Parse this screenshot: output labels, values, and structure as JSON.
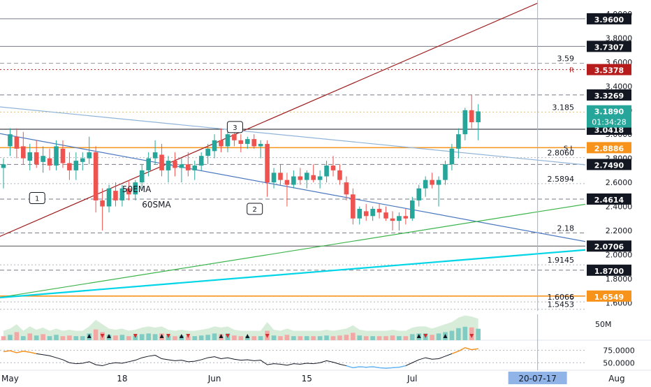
{
  "chart_data": {
    "type": "candlestick",
    "price_axis": {
      "min": 1.545,
      "max": 4.0,
      "ticks": [
        "4.0000",
        "3.8000",
        "3.6000",
        "3.4000",
        "3.2000",
        "3.0000",
        "2.8000",
        "2.6000",
        "2.4000",
        "2.2000",
        "2.0000",
        "1.8000",
        "1.6000"
      ],
      "tick_values": [
        4.0,
        3.8,
        3.6,
        3.4,
        3.2,
        3.0,
        2.8,
        2.6,
        2.4,
        2.2,
        2.0,
        1.8,
        1.6
      ]
    },
    "time_axis": {
      "labels": [
        {
          "text": "May",
          "day": 1
        },
        {
          "text": "18",
          "day": 18
        },
        {
          "text": "Jun",
          "day": 32
        },
        {
          "text": "15",
          "day": 46
        },
        {
          "text": "Jul",
          "day": 62
        },
        {
          "text": "Aug",
          "day": 93
        }
      ],
      "cursor_date": "20-07-17",
      "cursor_day": 81
    },
    "horizontal_levels": [
      {
        "price": 3.96,
        "label": "3.9600",
        "color": "#787b86",
        "style": "solid",
        "tag_bg": "#131722"
      },
      {
        "price": 3.7307,
        "label": "3.7307",
        "color": "#787b86",
        "style": "solid",
        "tag_bg": "#131722"
      },
      {
        "price": 3.59,
        "label": "3.59",
        "color": "#9598a1",
        "style": "dashed",
        "note": "3.59"
      },
      {
        "price": 3.5378,
        "label": "3.5378",
        "color": "#b71c1c",
        "style": "dotted",
        "tag_bg": "#b71c1c",
        "prefix": "R"
      },
      {
        "price": 3.3269,
        "label": "3.3269",
        "color": "#787b86",
        "style": "dashed",
        "tag_bg": "#131722"
      },
      {
        "price": 3.185,
        "label": "3.185",
        "color": "#e0c070",
        "style": "dotted",
        "note": "3.185"
      },
      {
        "price": 3.0418,
        "label": "3.0418",
        "color": "#131722",
        "style": "solid",
        "tag_bg": "#131722"
      },
      {
        "price": 2.8886,
        "label": "2.8886",
        "color": "#f7931a",
        "style": "solid",
        "tag_bg": "#f7931a",
        "prefix": "S L"
      },
      {
        "price": 2.806,
        "label": "2.8060",
        "color": "#b2b5be",
        "style": "dotted",
        "note": "2.8060"
      },
      {
        "price": 2.749,
        "label": "2.7490",
        "color": "#787b86",
        "style": "dashed",
        "tag_bg": "#131722"
      },
      {
        "price": 2.5894,
        "label": "2.5894",
        "color": "#b2b5be",
        "style": "dotted",
        "note": "2.5894"
      },
      {
        "price": 2.4614,
        "label": "2.4614",
        "color": "#787b86",
        "style": "dashed",
        "tag_bg": "#131722"
      },
      {
        "price": 2.18,
        "label": "2.18",
        "color": "#787b86",
        "style": "dashed",
        "note": "2.18"
      },
      {
        "price": 2.0706,
        "label": "2.0706",
        "color": "#555",
        "style": "solid",
        "tag_bg": "#131722"
      },
      {
        "price": 1.9145,
        "label": "1.9145",
        "color": "#b2b5be",
        "style": "dotted",
        "note": "1.9145"
      },
      {
        "price": 1.87,
        "label": "1.8700",
        "color": "#787b86",
        "style": "dashed",
        "tag_bg": "#131722"
      },
      {
        "price": 1.6549,
        "label": "1.6549",
        "color": "#f7931a",
        "style": "solid",
        "tag_bg": "#f7931a",
        "prefix": "S"
      },
      {
        "price": 1.6066,
        "label": "1.6066",
        "color": "#b2b5be",
        "style": "dotted",
        "note": "1.6066"
      },
      {
        "price": 1.5453,
        "label": "1.5453",
        "color": "#b2b5be",
        "style": "dotted",
        "note": "1.5453"
      }
    ],
    "current_price": {
      "label": "3.1890",
      "countdown": "01:34:28",
      "color": "#26a69a"
    },
    "trendlines": [
      {
        "name": "red",
        "color": "#9c1b1b",
        "from": [
          -1,
          2.14
        ],
        "to": [
          81,
          4.09
        ]
      },
      {
        "name": "light-blue",
        "color": "#90b4d8",
        "from": [
          -1,
          3.23
        ],
        "to": [
          93,
          2.72
        ]
      },
      {
        "name": "blue",
        "color": "#4a78c0",
        "from": [
          -1,
          3.01
        ],
        "to": [
          93,
          2.06
        ]
      },
      {
        "name": "green",
        "color": "#3cb44b",
        "from": [
          -1,
          1.64
        ],
        "to": [
          93,
          2.46
        ]
      },
      {
        "name": "cyan",
        "color": "#00d5e8",
        "from": [
          -1,
          1.64
        ],
        "to": [
          93,
          2.06
        ]
      }
    ],
    "callouts": [
      {
        "text": "1",
        "day": 5,
        "price": 2.47
      },
      {
        "text": "2",
        "day": 38,
        "price": 2.38
      },
      {
        "text": "3",
        "day": 35,
        "price": 3.06
      }
    ],
    "texts": [
      {
        "text": "50EMA",
        "day": 18,
        "price": 2.52
      },
      {
        "text": "60SMA",
        "day": 21,
        "price": 2.39
      }
    ],
    "candles": [
      [
        0,
        2.72,
        2.8,
        2.55,
        2.75
      ],
      [
        1,
        2.9,
        3.05,
        2.82,
        3.0
      ],
      [
        2,
        2.98,
        3.05,
        2.8,
        2.88
      ],
      [
        3,
        2.9,
        3.02,
        2.75,
        2.8
      ],
      [
        4,
        2.78,
        2.92,
        2.7,
        2.85
      ],
      [
        5,
        2.85,
        2.95,
        2.72,
        2.75
      ],
      [
        6,
        2.77,
        2.9,
        2.68,
        2.82
      ],
      [
        7,
        2.8,
        2.88,
        2.7,
        2.74
      ],
      [
        8,
        2.74,
        2.95,
        2.7,
        2.9
      ],
      [
        9,
        2.88,
        2.95,
        2.72,
        2.76
      ],
      [
        10,
        2.76,
        2.85,
        2.62,
        2.7
      ],
      [
        11,
        2.7,
        2.85,
        2.62,
        2.78
      ],
      [
        12,
        2.77,
        2.85,
        2.7,
        2.8
      ],
      [
        13,
        2.8,
        2.98,
        2.75,
        2.85
      ],
      [
        14,
        2.85,
        2.9,
        2.35,
        2.45
      ],
      [
        15,
        2.45,
        2.55,
        2.2,
        2.4
      ],
      [
        16,
        2.4,
        2.58,
        2.35,
        2.55
      ],
      [
        17,
        2.53,
        2.6,
        2.4,
        2.45
      ],
      [
        18,
        2.45,
        2.58,
        2.4,
        2.55
      ],
      [
        19,
        2.55,
        2.62,
        2.45,
        2.5
      ],
      [
        20,
        2.5,
        2.62,
        2.45,
        2.6
      ],
      [
        21,
        2.6,
        2.75,
        2.55,
        2.7
      ],
      [
        22,
        2.7,
        2.85,
        2.65,
        2.8
      ],
      [
        23,
        2.8,
        2.95,
        2.75,
        2.85
      ],
      [
        24,
        2.83,
        2.92,
        2.65,
        2.7
      ],
      [
        25,
        2.7,
        2.82,
        2.6,
        2.78
      ],
      [
        26,
        2.78,
        2.85,
        2.65,
        2.72
      ],
      [
        27,
        2.72,
        2.8,
        2.6,
        2.75
      ],
      [
        28,
        2.75,
        2.85,
        2.65,
        2.7
      ],
      [
        29,
        2.7,
        2.78,
        2.62,
        2.74
      ],
      [
        30,
        2.74,
        2.85,
        2.7,
        2.82
      ],
      [
        31,
        2.82,
        2.92,
        2.75,
        2.88
      ],
      [
        32,
        2.86,
        3.0,
        2.8,
        2.95
      ],
      [
        33,
        2.95,
        3.05,
        2.85,
        2.9
      ],
      [
        34,
        2.9,
        3.08,
        2.85,
        3.0
      ],
      [
        35,
        3.0,
        3.08,
        2.9,
        2.95
      ],
      [
        36,
        2.95,
        3.0,
        2.85,
        2.92
      ],
      [
        37,
        2.92,
        2.98,
        2.88,
        2.96
      ],
      [
        38,
        2.96,
        3.0,
        2.88,
        2.9
      ],
      [
        39,
        2.9,
        2.95,
        2.8,
        2.92
      ],
      [
        40,
        2.92,
        2.95,
        2.48,
        2.6
      ],
      [
        41,
        2.6,
        2.72,
        2.55,
        2.68
      ],
      [
        42,
        2.68,
        2.75,
        2.58,
        2.62
      ],
      [
        43,
        2.62,
        2.68,
        2.4,
        2.58
      ],
      [
        44,
        2.58,
        2.7,
        2.55,
        2.65
      ],
      [
        45,
        2.65,
        2.72,
        2.58,
        2.62
      ],
      [
        46,
        2.62,
        2.7,
        2.55,
        2.68
      ],
      [
        47,
        2.66,
        2.75,
        2.6,
        2.62
      ],
      [
        48,
        2.62,
        2.7,
        2.55,
        2.65
      ],
      [
        49,
        2.65,
        2.78,
        2.6,
        2.74
      ],
      [
        50,
        2.74,
        2.82,
        2.65,
        2.7
      ],
      [
        51,
        2.7,
        2.75,
        2.58,
        2.62
      ],
      [
        52,
        2.6,
        2.65,
        2.45,
        2.5
      ],
      [
        53,
        2.5,
        2.55,
        2.25,
        2.3
      ],
      [
        54,
        2.3,
        2.4,
        2.25,
        2.38
      ],
      [
        55,
        2.36,
        2.42,
        2.28,
        2.32
      ],
      [
        56,
        2.32,
        2.4,
        2.28,
        2.38
      ],
      [
        57,
        2.38,
        2.42,
        2.3,
        2.35
      ],
      [
        58,
        2.35,
        2.4,
        2.28,
        2.3
      ],
      [
        59,
        2.3,
        2.36,
        2.2,
        2.28
      ],
      [
        60,
        2.28,
        2.35,
        2.2,
        2.32
      ],
      [
        61,
        2.32,
        2.38,
        2.25,
        2.3
      ],
      [
        62,
        2.3,
        2.48,
        2.28,
        2.45
      ],
      [
        63,
        2.45,
        2.58,
        2.4,
        2.55
      ],
      [
        64,
        2.55,
        2.65,
        2.48,
        2.62
      ],
      [
        65,
        2.62,
        2.68,
        2.55,
        2.58
      ],
      [
        66,
        2.58,
        2.65,
        2.4,
        2.62
      ],
      [
        67,
        2.62,
        2.78,
        2.58,
        2.75
      ],
      [
        68,
        2.75,
        2.92,
        2.7,
        2.88
      ],
      [
        69,
        2.88,
        3.05,
        2.8,
        3.0
      ],
      [
        70,
        3.0,
        3.22,
        2.95,
        3.2
      ],
      [
        71,
        3.2,
        3.33,
        3.05,
        3.1
      ],
      [
        72,
        3.1,
        3.25,
        2.95,
        3.19
      ]
    ],
    "volume": {
      "label": "50M",
      "bars": [
        [
          0,
          0.3,
          "d"
        ],
        [
          1,
          0.4,
          "u"
        ],
        [
          2,
          0.6,
          "d"
        ],
        [
          3,
          0.3,
          "u"
        ],
        [
          4,
          0.5,
          "d"
        ],
        [
          5,
          0.35,
          "u"
        ],
        [
          6,
          0.45,
          "d"
        ],
        [
          7,
          0.3,
          "u"
        ],
        [
          8,
          0.4,
          "u"
        ],
        [
          9,
          0.3,
          "d"
        ],
        [
          10,
          0.35,
          "d"
        ],
        [
          11,
          0.3,
          "u"
        ],
        [
          12,
          0.3,
          "u"
        ],
        [
          13,
          0.5,
          "u"
        ],
        [
          14,
          0.8,
          "d"
        ],
        [
          15,
          0.6,
          "d"
        ],
        [
          16,
          0.4,
          "u"
        ],
        [
          17,
          0.35,
          "d"
        ],
        [
          18,
          0.4,
          "u"
        ],
        [
          19,
          0.3,
          "d"
        ],
        [
          20,
          0.35,
          "u"
        ],
        [
          21,
          0.45,
          "u"
        ],
        [
          22,
          0.5,
          "u"
        ],
        [
          23,
          0.45,
          "u"
        ],
        [
          24,
          0.5,
          "d"
        ],
        [
          25,
          0.35,
          "u"
        ],
        [
          26,
          0.3,
          "d"
        ],
        [
          27,
          0.35,
          "u"
        ],
        [
          28,
          0.3,
          "d"
        ],
        [
          29,
          0.3,
          "u"
        ],
        [
          30,
          0.35,
          "u"
        ],
        [
          31,
          0.4,
          "u"
        ],
        [
          32,
          0.5,
          "u"
        ],
        [
          33,
          0.45,
          "d"
        ],
        [
          34,
          0.5,
          "u"
        ],
        [
          35,
          0.35,
          "d"
        ],
        [
          36,
          0.3,
          "d"
        ],
        [
          37,
          0.3,
          "u"
        ],
        [
          38,
          0.3,
          "d"
        ],
        [
          39,
          0.3,
          "u"
        ],
        [
          40,
          0.7,
          "d"
        ],
        [
          41,
          0.35,
          "u"
        ],
        [
          42,
          0.3,
          "d"
        ],
        [
          43,
          0.4,
          "d"
        ],
        [
          44,
          0.3,
          "u"
        ],
        [
          45,
          0.3,
          "d"
        ],
        [
          46,
          0.3,
          "u"
        ],
        [
          47,
          0.3,
          "d"
        ],
        [
          48,
          0.3,
          "u"
        ],
        [
          49,
          0.35,
          "u"
        ],
        [
          50,
          0.3,
          "d"
        ],
        [
          51,
          0.35,
          "d"
        ],
        [
          52,
          0.4,
          "d"
        ],
        [
          53,
          0.55,
          "d"
        ],
        [
          54,
          0.35,
          "u"
        ],
        [
          55,
          0.3,
          "d"
        ],
        [
          56,
          0.3,
          "u"
        ],
        [
          57,
          0.3,
          "d"
        ],
        [
          58,
          0.3,
          "d"
        ],
        [
          59,
          0.35,
          "d"
        ],
        [
          60,
          0.3,
          "u"
        ],
        [
          61,
          0.3,
          "d"
        ],
        [
          62,
          0.45,
          "u"
        ],
        [
          63,
          0.5,
          "u"
        ],
        [
          64,
          0.5,
          "u"
        ],
        [
          65,
          0.4,
          "d"
        ],
        [
          66,
          0.5,
          "u"
        ],
        [
          67,
          0.6,
          "u"
        ],
        [
          68,
          0.7,
          "u"
        ],
        [
          69,
          0.9,
          "u"
        ],
        [
          70,
          1.0,
          "u"
        ],
        [
          71,
          0.95,
          "d"
        ],
        [
          72,
          0.85,
          "u"
        ]
      ]
    },
    "oscillator": {
      "ticks": [
        "75.0000",
        "50.0000"
      ],
      "tick_values": [
        75,
        50
      ],
      "min": 35,
      "max": 95,
      "values": [
        72,
        74,
        70,
        73,
        71,
        68,
        66,
        64,
        60,
        56,
        50,
        48,
        49,
        52,
        46,
        44,
        48,
        50,
        49,
        52,
        55,
        60,
        63,
        65,
        58,
        56,
        54,
        55,
        52,
        53,
        56,
        60,
        62,
        58,
        60,
        57,
        55,
        56,
        54,
        55,
        46,
        48,
        47,
        45,
        48,
        47,
        49,
        48,
        50,
        54,
        51,
        47,
        44,
        40,
        42,
        41,
        42,
        40,
        39,
        40,
        41,
        44,
        50,
        56,
        60,
        57,
        58,
        63,
        68,
        73,
        80,
        76,
        78
      ],
      "highlight_from": 68
    }
  }
}
